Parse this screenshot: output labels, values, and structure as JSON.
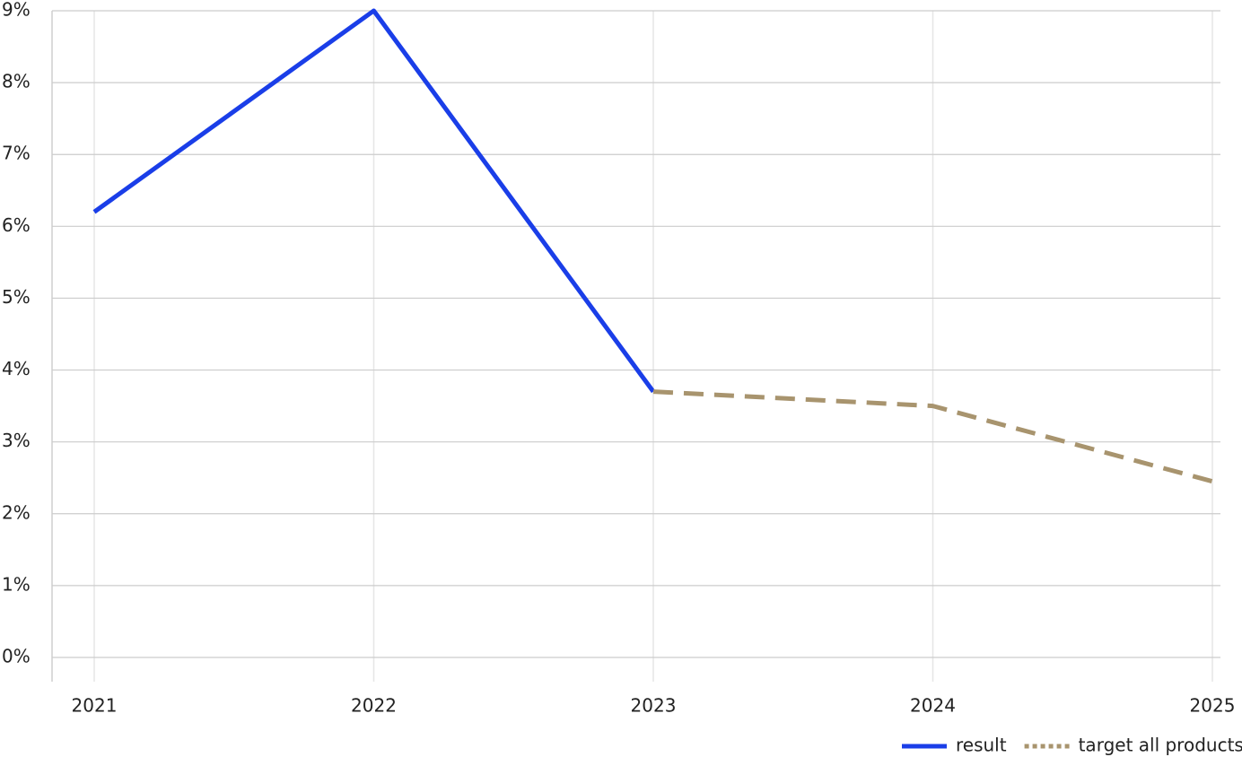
{
  "chart_data": {
    "type": "line",
    "categories": [
      "2021",
      "2022",
      "2023",
      "2024",
      "2025"
    ],
    "series": [
      {
        "name": "result",
        "color": "#1a3ee8",
        "line_style": "solid",
        "values": [
          6.2,
          9.0,
          3.7,
          null,
          null
        ]
      },
      {
        "name": "target all products",
        "color": "#a8946e",
        "line_style": "dashed",
        "values": [
          null,
          null,
          3.7,
          3.5,
          2.45
        ]
      }
    ],
    "ylim": [
      0,
      9
    ],
    "yticks": [
      {
        "value": 0,
        "label": "0%"
      },
      {
        "value": 1,
        "label": "1%"
      },
      {
        "value": 2,
        "label": "2%"
      },
      {
        "value": 3,
        "label": "3%"
      },
      {
        "value": 4,
        "label": "4%"
      },
      {
        "value": 5,
        "label": "5%"
      },
      {
        "value": 6,
        "label": "6%"
      },
      {
        "value": 7,
        "label": "7%"
      },
      {
        "value": 8,
        "label": "8%"
      },
      {
        "value": 9,
        "label": "9%"
      }
    ],
    "grid": true,
    "legend": "bottom-right"
  }
}
